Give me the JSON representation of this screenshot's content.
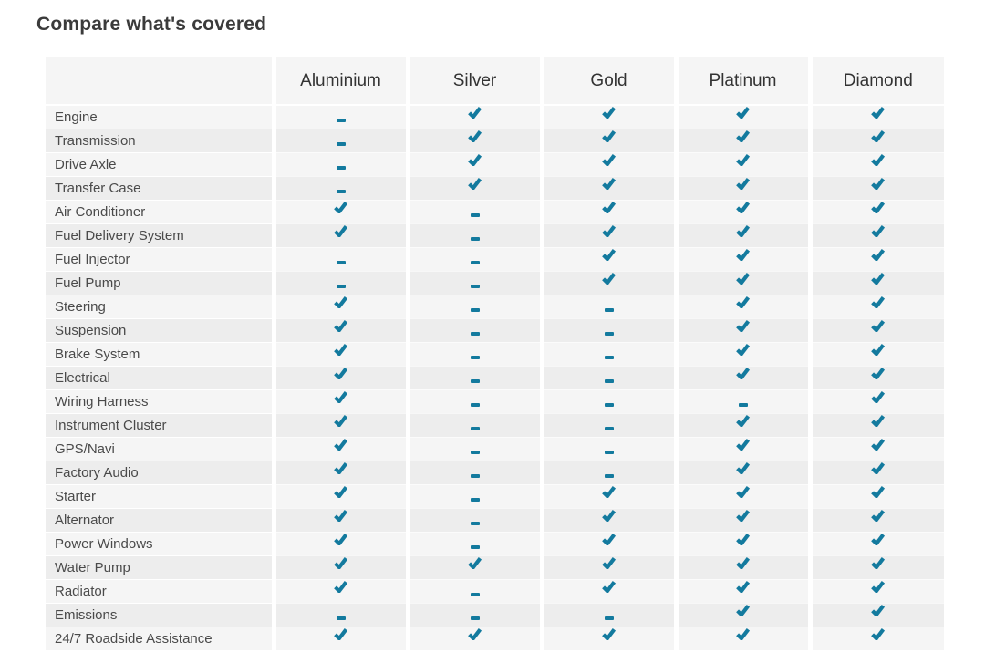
{
  "title": "Compare what's covered",
  "colors": {
    "accent_teal": "#137a9e",
    "row_light": "#f5f5f5",
    "row_dark": "#ededed",
    "header_background": "#f5f5f5",
    "header_text": "#333333",
    "label_text": "#4a4a4a",
    "title_text": "#3b3b3b",
    "page_background": "#ffffff"
  },
  "icons": {
    "covered": "check-icon",
    "not_covered": "dash-icon",
    "covered_glyph": "✔",
    "not_covered_glyph": "-"
  },
  "table": {
    "plans": [
      "Aluminium",
      "Silver",
      "Gold",
      "Platinum",
      "Diamond"
    ],
    "rows": [
      {
        "feature": "Engine",
        "covered": [
          false,
          true,
          true,
          true,
          true
        ]
      },
      {
        "feature": "Transmission",
        "covered": [
          false,
          true,
          true,
          true,
          true
        ]
      },
      {
        "feature": "Drive Axle",
        "covered": [
          false,
          true,
          true,
          true,
          true
        ]
      },
      {
        "feature": "Transfer Case",
        "covered": [
          false,
          true,
          true,
          true,
          true
        ]
      },
      {
        "feature": "Air Conditioner",
        "covered": [
          true,
          false,
          true,
          true,
          true
        ]
      },
      {
        "feature": "Fuel Delivery System",
        "covered": [
          true,
          false,
          true,
          true,
          true
        ]
      },
      {
        "feature": "Fuel Injector",
        "covered": [
          false,
          false,
          true,
          true,
          true
        ]
      },
      {
        "feature": "Fuel Pump",
        "covered": [
          false,
          false,
          true,
          true,
          true
        ]
      },
      {
        "feature": "Steering",
        "covered": [
          true,
          false,
          false,
          true,
          true
        ]
      },
      {
        "feature": "Suspension",
        "covered": [
          true,
          false,
          false,
          true,
          true
        ]
      },
      {
        "feature": "Brake System",
        "covered": [
          true,
          false,
          false,
          true,
          true
        ]
      },
      {
        "feature": "Electrical",
        "covered": [
          true,
          false,
          false,
          true,
          true
        ]
      },
      {
        "feature": "Wiring Harness",
        "covered": [
          true,
          false,
          false,
          false,
          true
        ]
      },
      {
        "feature": "Instrument Cluster",
        "covered": [
          true,
          false,
          false,
          true,
          true
        ]
      },
      {
        "feature": "GPS/Navi",
        "covered": [
          true,
          false,
          false,
          true,
          true
        ]
      },
      {
        "feature": "Factory Audio",
        "covered": [
          true,
          false,
          false,
          true,
          true
        ]
      },
      {
        "feature": "Starter",
        "covered": [
          true,
          false,
          true,
          true,
          true
        ]
      },
      {
        "feature": "Alternator",
        "covered": [
          true,
          false,
          true,
          true,
          true
        ]
      },
      {
        "feature": "Power Windows",
        "covered": [
          true,
          false,
          true,
          true,
          true
        ]
      },
      {
        "feature": "Water Pump",
        "covered": [
          true,
          true,
          true,
          true,
          true
        ]
      },
      {
        "feature": "Radiator",
        "covered": [
          true,
          false,
          true,
          true,
          true
        ]
      },
      {
        "feature": "Emissions",
        "covered": [
          false,
          false,
          false,
          true,
          true
        ]
      },
      {
        "feature": "24/7 Roadside Assistance",
        "covered": [
          true,
          true,
          true,
          true,
          true
        ]
      }
    ]
  }
}
